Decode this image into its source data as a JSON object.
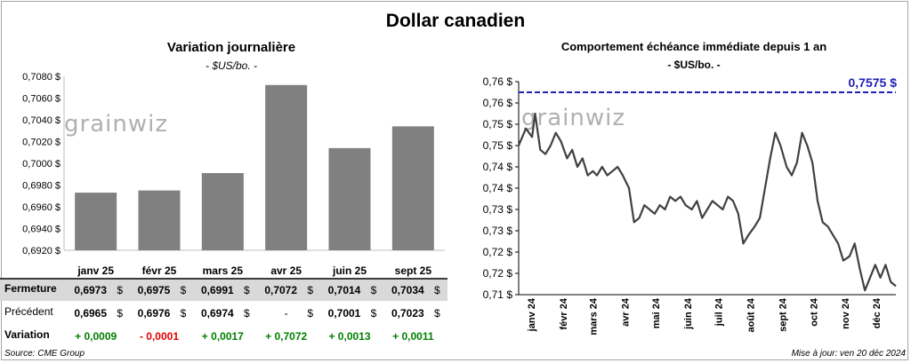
{
  "page_title": "Dollar canadien",
  "left": {
    "title": "Variation journalière",
    "unit": "- $US/bo. -"
  },
  "right": {
    "title": "Comportement échéance immédiate depuis 1 an",
    "unit": "- $US/bo. -",
    "reference_label": "0,7575 $"
  },
  "watermark": "grainwiz",
  "table": {
    "rows": [
      {
        "label": "Fermeture",
        "values": [
          "0,6973",
          "0,6975",
          "0,6991",
          "0,7072",
          "0,7014",
          "0,7034"
        ],
        "unit": "$"
      },
      {
        "label": "Précédent",
        "values": [
          "0,6965",
          "0,6976",
          "0,6974",
          "-",
          "0,7001",
          "0,7023"
        ],
        "unit": "$"
      },
      {
        "label": "Variation",
        "values": [
          "+ 0,0009",
          "- 0,0001",
          "+ 0,0017",
          "+ 0,7072",
          "+ 0,0013",
          "+ 0,0011"
        ]
      }
    ]
  },
  "footer": {
    "source": "Source: CME Group",
    "updated": "Mise à jour: ven 20 déc 2024"
  },
  "colors": {
    "bar": "#808080",
    "line": "#404040",
    "reference": "#1f1fb4",
    "positive": "#008000",
    "negative": "#e00000",
    "closing_row_bg": "#d9d9d9"
  },
  "chart_data": [
    {
      "type": "bar",
      "title": "Variation journalière",
      "categories": [
        "janv 25",
        "févr 25",
        "mars 25",
        "avr 25",
        "juin 25",
        "sept 25"
      ],
      "values": [
        0.6973,
        0.6975,
        0.6991,
        0.7072,
        0.7014,
        0.7034
      ],
      "ylim": [
        0.692,
        0.708
      ],
      "yticks": [
        "0,6920 $",
        "0,6940 $",
        "0,6960 $",
        "0,6980 $",
        "0,7000 $",
        "0,7020 $",
        "0,7040 $",
        "0,7060 $",
        "0,7080 $"
      ],
      "grid": false
    },
    {
      "type": "line",
      "title": "Comportement échéance immédiate depuis 1 an",
      "ylim": [
        0.71,
        0.76
      ],
      "yticks": [
        "0,71 $",
        "0,72 $",
        "0,72 $",
        "0,73 $",
        "0,73 $",
        "0,74 $",
        "0,74 $",
        "0,75 $",
        "0,75 $",
        "0,76 $",
        "0,76 $"
      ],
      "xticks": [
        "janv 24",
        "févr 24",
        "mars 24",
        "avr 24",
        "mai 24",
        "juin 24",
        "juil 24",
        "août 24",
        "sept 24",
        "oct 24",
        "nov 24",
        "déc 24"
      ],
      "reference_line": 0.7575,
      "series": [
        {
          "x": [
            "2023-12-20",
            "2023-12-27",
            "2024-01-02",
            "2024-01-05",
            "2024-01-10",
            "2024-01-15",
            "2024-01-20",
            "2024-01-25",
            "2024-01-30",
            "2024-02-05",
            "2024-02-10",
            "2024-02-15",
            "2024-02-20",
            "2024-02-25",
            "2024-03-01",
            "2024-03-05",
            "2024-03-10",
            "2024-03-15",
            "2024-03-20",
            "2024-03-25",
            "2024-03-30",
            "2024-04-05",
            "2024-04-10",
            "2024-04-15",
            "2024-04-20",
            "2024-04-25",
            "2024-04-30",
            "2024-05-05",
            "2024-05-10",
            "2024-05-15",
            "2024-05-20",
            "2024-05-25",
            "2024-05-30",
            "2024-06-05",
            "2024-06-10",
            "2024-06-15",
            "2024-06-20",
            "2024-06-25",
            "2024-06-30",
            "2024-07-05",
            "2024-07-10",
            "2024-07-15",
            "2024-07-20",
            "2024-07-25",
            "2024-07-30",
            "2024-08-05",
            "2024-08-10",
            "2024-08-15",
            "2024-08-20",
            "2024-08-25",
            "2024-08-30",
            "2024-09-05",
            "2024-09-10",
            "2024-09-15",
            "2024-09-20",
            "2024-09-25",
            "2024-09-30",
            "2024-10-05",
            "2024-10-10",
            "2024-10-15",
            "2024-10-20",
            "2024-10-25",
            "2024-10-30",
            "2024-11-05",
            "2024-11-10",
            "2024-11-15",
            "2024-11-20",
            "2024-11-25",
            "2024-11-30",
            "2024-12-05",
            "2024-12-10",
            "2024-12-15",
            "2024-12-20"
          ],
          "y": [
            0.745,
            0.749,
            0.747,
            0.7525,
            0.744,
            0.743,
            0.745,
            0.748,
            0.746,
            0.742,
            0.744,
            0.74,
            0.742,
            0.738,
            0.739,
            0.738,
            0.74,
            0.738,
            0.739,
            0.74,
            0.738,
            0.735,
            0.727,
            0.728,
            0.731,
            0.73,
            0.729,
            0.731,
            0.73,
            0.733,
            0.732,
            0.733,
            0.731,
            0.73,
            0.732,
            0.728,
            0.73,
            0.732,
            0.731,
            0.73,
            0.733,
            0.732,
            0.729,
            0.722,
            0.724,
            0.726,
            0.728,
            0.735,
            0.742,
            0.748,
            0.745,
            0.74,
            0.738,
            0.741,
            0.748,
            0.745,
            0.741,
            0.732,
            0.727,
            0.726,
            0.724,
            0.722,
            0.718,
            0.719,
            0.722,
            0.716,
            0.711,
            0.714,
            0.717,
            0.714,
            0.717,
            0.713,
            0.712
          ]
        }
      ]
    }
  ]
}
